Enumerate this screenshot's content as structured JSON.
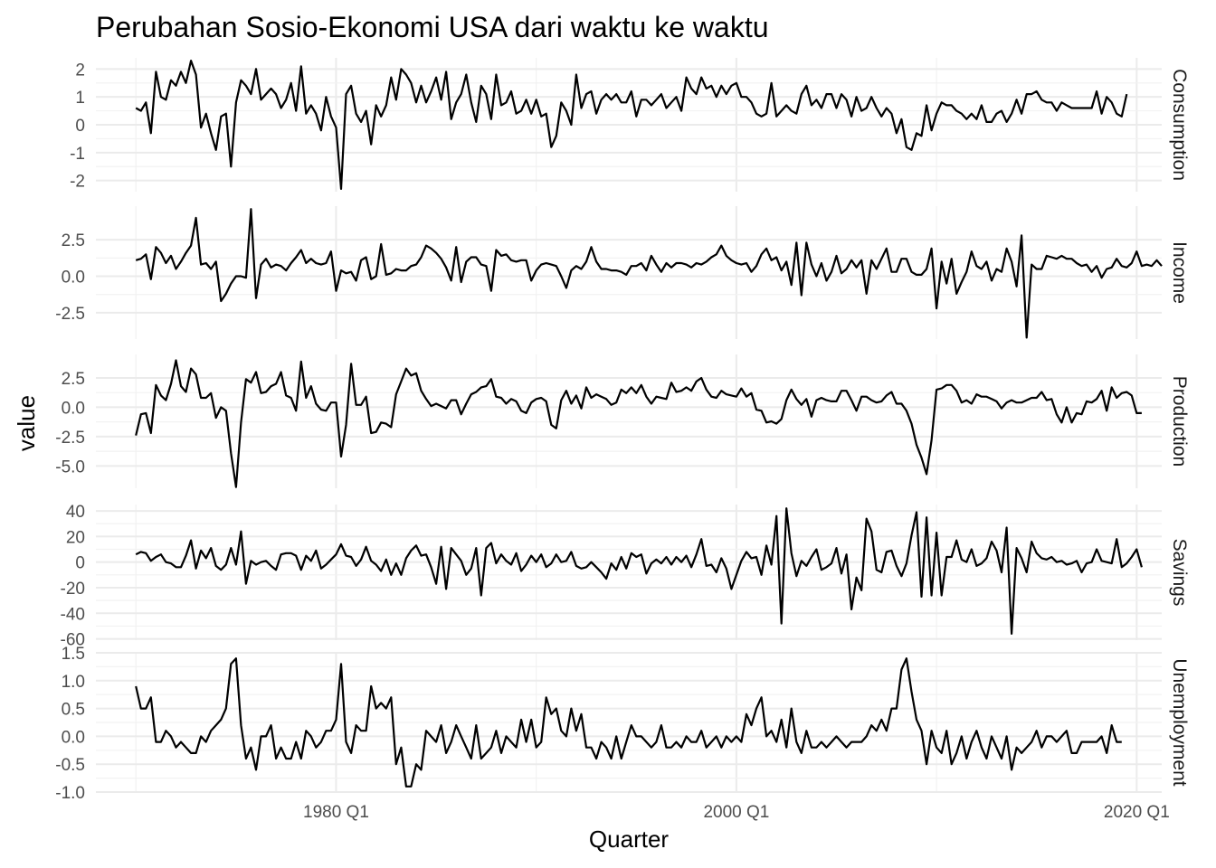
{
  "chart_data": {
    "type": "line",
    "title": "Perubahan Sosio-Ekonomi USA dari waktu ke waktu",
    "xlabel": "Quarter",
    "ylabel": "value",
    "x_start": "1970 Q1",
    "x_end": "2019 Q2",
    "x_ticks": [
      "1980 Q1",
      "2000 Q1",
      "2020 Q1"
    ],
    "x_range": [
      "1968 Q1",
      "2021 Q2"
    ],
    "grid": true,
    "facets": [
      {
        "name": "Consumption",
        "ylim": [
          -2.4,
          2.4
        ],
        "y_ticks": [
          2,
          1,
          0,
          -1,
          -2
        ],
        "y_tick_labels": [
          "2",
          "1",
          "0",
          "-1",
          "-2"
        ],
        "values": [
          0.6,
          0.5,
          0.8,
          -0.3,
          1.9,
          1.0,
          0.9,
          1.6,
          1.4,
          1.9,
          1.5,
          2.3,
          1.8,
          -0.1,
          0.4,
          -0.3,
          -0.9,
          0.3,
          0.4,
          -1.5,
          0.8,
          1.6,
          1.4,
          1.1,
          2.0,
          0.9,
          1.1,
          1.3,
          1.1,
          0.6,
          0.9,
          1.5,
          0.5,
          2.1,
          0.4,
          0.7,
          0.4,
          -0.2,
          1.0,
          0.3,
          -0.1,
          -2.3,
          1.1,
          1.4,
          0.4,
          0.1,
          0.5,
          -0.7,
          0.7,
          0.3,
          0.7,
          1.7,
          0.9,
          2.0,
          1.8,
          1.5,
          0.8,
          1.4,
          0.8,
          1.2,
          1.7,
          0.9,
          1.9,
          0.2,
          0.8,
          1.1,
          1.8,
          0.8,
          0.1,
          1.4,
          1.1,
          0.2,
          1.8,
          0.7,
          0.8,
          1.2,
          0.4,
          0.5,
          0.9,
          0.4,
          0.9,
          0.3,
          0.4,
          -0.8,
          -0.4,
          0.8,
          0.5,
          0.0,
          1.8,
          0.6,
          1.1,
          1.2,
          0.4,
          0.9,
          1.1,
          0.9,
          1.1,
          0.8,
          0.8,
          1.2,
          0.3,
          0.9,
          0.9,
          0.7,
          0.9,
          1.1,
          0.6,
          0.8,
          1.0,
          0.5,
          1.7,
          1.3,
          1.1,
          1.7,
          1.3,
          1.4,
          1.0,
          1.4,
          1.1,
          1.4,
          1.5,
          1.0,
          1.0,
          0.8,
          0.4,
          0.3,
          0.4,
          1.5,
          0.3,
          0.5,
          0.7,
          0.5,
          0.4,
          1.1,
          1.4,
          0.7,
          0.9,
          0.6,
          1.1,
          1.1,
          0.6,
          1.1,
          0.9,
          0.3,
          1.0,
          0.5,
          0.6,
          1.0,
          0.6,
          0.3,
          0.6,
          0.4,
          -0.3,
          0.2,
          -0.8,
          -0.9,
          -0.3,
          -0.4,
          0.7,
          -0.2,
          0.4,
          0.8,
          0.7,
          0.7,
          0.5,
          0.4,
          0.2,
          0.4,
          0.2,
          0.7,
          0.1,
          0.1,
          0.4,
          0.5,
          0.1,
          0.4,
          0.9,
          0.4,
          1.1,
          1.1,
          1.2,
          0.9,
          0.8,
          0.8,
          0.5,
          0.8,
          0.7,
          0.6,
          0.6,
          0.6,
          0.6,
          0.6,
          1.2,
          0.4,
          1.0,
          0.8,
          0.4,
          0.3,
          1.1
        ]
      },
      {
        "name": "Income",
        "ylim": [
          -4.3,
          4.8
        ],
        "y_ticks": [
          2.5,
          0,
          -2.5
        ],
        "y_tick_labels": [
          "2.5",
          "0.0",
          "-2.5"
        ],
        "values": [
          1.1,
          1.2,
          1.5,
          -0.2,
          2.0,
          1.6,
          0.9,
          1.4,
          0.5,
          1.0,
          1.6,
          2.1,
          4.0,
          0.8,
          0.9,
          0.5,
          1.0,
          -1.7,
          -1.2,
          -0.5,
          0.0,
          0.0,
          -0.1,
          4.6,
          -1.5,
          0.8,
          1.2,
          0.6,
          0.8,
          0.7,
          0.4,
          0.9,
          1.3,
          1.8,
          0.9,
          1.2,
          0.9,
          0.8,
          0.9,
          1.7,
          -1.0,
          0.4,
          0.2,
          0.3,
          -0.3,
          1.1,
          1.3,
          -0.2,
          0.0,
          2.2,
          0.1,
          0.2,
          0.5,
          0.4,
          0.4,
          0.7,
          0.8,
          1.3,
          2.1,
          1.9,
          1.6,
          1.2,
          0.6,
          -0.3,
          2.0,
          -0.4,
          1.0,
          1.3,
          1.3,
          0.8,
          0.7,
          -1.0,
          1.8,
          1.4,
          1.5,
          1.1,
          1.0,
          1.1,
          1.1,
          -0.3,
          0.4,
          0.8,
          0.9,
          0.8,
          0.7,
          0.0,
          -0.8,
          0.4,
          0.7,
          0.5,
          1.0,
          2.0,
          1.0,
          0.5,
          0.5,
          0.4,
          0.4,
          0.3,
          0.1,
          0.7,
          0.7,
          0.9,
          0.4,
          1.4,
          0.8,
          0.3,
          0.9,
          0.6,
          0.9,
          0.9,
          0.8,
          0.6,
          0.9,
          0.8,
          1.0,
          1.3,
          1.5,
          2.1,
          1.4,
          1.1,
          0.9,
          0.8,
          0.9,
          0.3,
          0.7,
          1.5,
          1.9,
          1.1,
          1.3,
          0.4,
          1.0,
          -0.6,
          2.3,
          -1.3,
          2.3,
          0.8,
          0.0,
          0.9,
          -0.3,
          0.3,
          1.4,
          0.2,
          0.5,
          1.1,
          0.6,
          1.1,
          -1.2,
          1.1,
          0.5,
          1.2,
          1.9,
          0.3,
          0.3,
          1.2,
          1.2,
          0.3,
          0.1,
          0.1,
          0.5,
          1.9,
          -2.2,
          1.0,
          -0.5,
          1.2,
          -1.2,
          -0.4,
          0.3,
          1.7,
          0.7,
          0.5,
          1.0,
          -0.3,
          0.5,
          0.3,
          1.9,
          1.0,
          -0.7,
          2.8,
          -4.2,
          0.8,
          0.5,
          0.5,
          1.4,
          1.3,
          1.2,
          1.4,
          1.2,
          1.2,
          0.9,
          0.7,
          0.8,
          0.3,
          0.7,
          -0.1,
          0.5,
          0.6,
          1.2,
          0.7,
          0.6,
          0.9,
          1.7,
          0.7,
          0.8,
          0.7,
          1.1,
          0.7
        ]
      },
      {
        "name": "Production",
        "ylim": [
          -6.9,
          4.5
        ],
        "y_ticks": [
          2.5,
          0,
          -2.5,
          -5
        ],
        "y_tick_labels": [
          "2.5",
          "0.0",
          "-2.5",
          "-5.0"
        ],
        "values": [
          -2.4,
          -0.6,
          -0.5,
          -2.2,
          1.9,
          1.0,
          0.6,
          2.0,
          4.0,
          1.8,
          1.3,
          3.3,
          2.8,
          0.8,
          0.8,
          1.2,
          -0.9,
          0.0,
          -0.3,
          -3.9,
          -6.8,
          -1.3,
          2.4,
          2.1,
          3.0,
          1.2,
          1.3,
          1.8,
          2.0,
          3.0,
          1.0,
          0.8,
          -0.3,
          3.9,
          0.8,
          1.8,
          0.3,
          -0.2,
          -0.3,
          0.4,
          0.4,
          -4.2,
          -1.5,
          3.7,
          0.2,
          0.2,
          0.9,
          -2.2,
          -2.1,
          -1.3,
          -1.4,
          -1.7,
          1.1,
          2.2,
          3.3,
          2.7,
          2.9,
          1.4,
          0.7,
          0.1,
          0.3,
          0.1,
          -0.1,
          0.6,
          0.6,
          -0.6,
          0.3,
          1.1,
          1.3,
          1.7,
          1.8,
          2.4,
          0.9,
          0.8,
          0.3,
          0.7,
          0.5,
          -0.3,
          -0.5,
          0.4,
          0.7,
          0.8,
          0.5,
          -1.5,
          -1.8,
          0.6,
          1.4,
          0.3,
          1.0,
          -0.1,
          1.7,
          0.8,
          1.1,
          0.9,
          0.7,
          0.2,
          0.4,
          1.5,
          1.2,
          1.7,
          1.2,
          1.9,
          0.9,
          0.3,
          0.9,
          0.8,
          0.7,
          2.1,
          1.3,
          1.4,
          1.7,
          1.4,
          2.2,
          2.5,
          1.5,
          0.9,
          0.8,
          1.4,
          1.1,
          1.0,
          0.9,
          1.6,
          0.9,
          1.2,
          -0.2,
          -0.3,
          -1.3,
          -1.2,
          -1.4,
          -1.0,
          0.6,
          1.5,
          0.7,
          0.2,
          0.7,
          -0.8,
          0.6,
          0.8,
          0.6,
          0.5,
          0.5,
          1.4,
          1.4,
          0.6,
          -0.3,
          0.9,
          0.9,
          0.6,
          0.4,
          0.5,
          1.0,
          1.3,
          0.3,
          0.3,
          -0.3,
          -1.4,
          -3.2,
          -4.3,
          -5.7,
          -2.8,
          1.5,
          1.6,
          1.9,
          1.9,
          1.4,
          0.4,
          0.6,
          0.3,
          1.1,
          0.9,
          0.9,
          0.7,
          0.5,
          -0.1,
          0.4,
          0.6,
          0.4,
          0.4,
          0.6,
          0.8,
          0.8,
          1.3,
          0.6,
          0.7,
          -0.6,
          -1.3,
          0.0,
          -1.3,
          -0.5,
          -0.6,
          0.5,
          0.4,
          0.7,
          1.4,
          -0.3,
          1.7,
          0.8,
          1.2,
          1.3,
          1.0,
          -0.5,
          -0.5
        ]
      },
      {
        "name": "Savings",
        "ylim": [
          -61,
          45
        ],
        "y_ticks": [
          40,
          20,
          0,
          -20,
          -40,
          -60
        ],
        "y_tick_labels": [
          "40",
          "20",
          "0",
          "-20",
          "-40",
          "-60"
        ],
        "values": [
          6,
          8,
          7,
          1,
          4,
          6,
          0,
          -1,
          -4,
          -4,
          5,
          17,
          -5,
          9,
          3,
          11,
          -3,
          -6,
          -2,
          11,
          -2,
          24,
          -17,
          1,
          -2,
          0,
          1,
          -3,
          -6,
          6,
          7,
          7,
          5,
          -6,
          5,
          1,
          9,
          -5,
          -2,
          2,
          6,
          14,
          5,
          4,
          -3,
          2,
          12,
          1,
          -2,
          -7,
          2,
          -10,
          -1,
          -10,
          3,
          9,
          13,
          5,
          6,
          -4,
          -17,
          12,
          -21,
          11,
          6,
          1,
          -10,
          -5,
          11,
          -26,
          11,
          15,
          -1,
          6,
          1,
          -2,
          7,
          -7,
          -2,
          5,
          0,
          6,
          -4,
          -1,
          6,
          0,
          1,
          8,
          -3,
          -5,
          -4,
          0,
          -4,
          -8,
          -13,
          -1,
          -6,
          4,
          -5,
          7,
          4,
          6,
          -9,
          -1,
          2,
          -1,
          4,
          -2,
          4,
          0,
          5,
          -4,
          6,
          18,
          -3,
          -2,
          -8,
          3,
          -5,
          -21,
          -10,
          1,
          8,
          3,
          4,
          -10,
          13,
          -2,
          36,
          -48,
          42,
          7,
          -11,
          1,
          -3,
          4,
          10,
          -6,
          -4,
          -1,
          11,
          -9,
          6,
          -37,
          -12,
          -22,
          34,
          24,
          -6,
          -8,
          8,
          9,
          -3,
          -11,
          -1,
          21,
          39,
          -27,
          35,
          -26,
          23,
          -26,
          4,
          4,
          17,
          2,
          0,
          10,
          -3,
          -1,
          3,
          16,
          9,
          -8,
          27,
          -56,
          11,
          3,
          -8,
          16,
          7,
          3,
          2,
          4,
          0,
          1,
          -2,
          -1,
          1,
          -8,
          -1,
          0,
          10,
          1,
          0,
          -1,
          18,
          -4,
          -1,
          4,
          10,
          -4
        ]
      },
      {
        "name": "Unemployment",
        "ylim": [
          -1.0,
          1.5
        ],
        "y_ticks": [
          1.5,
          1.0,
          0.5,
          0,
          -0.5,
          -1.0
        ],
        "y_tick_labels": [
          "1.5",
          "1.0",
          "0.5",
          "0.0",
          "-0.5",
          "-1.0"
        ],
        "values": [
          0.9,
          0.5,
          0.5,
          0.7,
          -0.1,
          -0.1,
          0.1,
          0.0,
          -0.2,
          -0.1,
          -0.2,
          -0.3,
          -0.3,
          0.0,
          -0.1,
          0.1,
          0.2,
          0.3,
          0.5,
          1.3,
          1.4,
          0.2,
          -0.4,
          -0.2,
          -0.6,
          0.0,
          0.0,
          0.2,
          -0.4,
          -0.2,
          -0.4,
          -0.4,
          -0.1,
          -0.4,
          0.1,
          0.0,
          -0.2,
          -0.1,
          0.1,
          0.1,
          0.3,
          1.3,
          -0.1,
          -0.3,
          0.2,
          0.1,
          0.1,
          0.9,
          0.5,
          0.6,
          0.5,
          0.7,
          -0.5,
          -0.2,
          -0.9,
          -0.9,
          -0.5,
          -0.6,
          0.1,
          0.0,
          -0.1,
          0.2,
          -0.3,
          -0.1,
          0.2,
          0.0,
          -0.2,
          -0.4,
          0.2,
          -0.4,
          -0.3,
          -0.2,
          0.1,
          -0.3,
          0.0,
          -0.1,
          -0.2,
          0.3,
          -0.1,
          0.3,
          -0.2,
          -0.1,
          0.7,
          0.4,
          0.5,
          0.1,
          0.0,
          0.5,
          0.1,
          0.4,
          -0.2,
          -0.2,
          -0.4,
          -0.1,
          -0.2,
          -0.4,
          0.0,
          -0.4,
          -0.1,
          0.2,
          0.0,
          0.0,
          -0.1,
          -0.2,
          -0.1,
          0.2,
          -0.2,
          -0.2,
          -0.1,
          -0.2,
          0.0,
          -0.1,
          -0.1,
          0.1,
          -0.2,
          -0.1,
          0.0,
          -0.2,
          0.0,
          -0.1,
          0.0,
          -0.1,
          0.4,
          0.2,
          0.5,
          0.7,
          0.0,
          0.1,
          -0.1,
          0.3,
          -0.2,
          0.5,
          -0.1,
          -0.3,
          0.1,
          -0.2,
          -0.2,
          -0.1,
          -0.2,
          -0.1,
          0.0,
          -0.1,
          -0.2,
          -0.1,
          -0.1,
          -0.1,
          0.0,
          0.2,
          0.1,
          0.3,
          0.1,
          0.5,
          0.5,
          1.2,
          1.4,
          0.8,
          0.3,
          0.1,
          -0.5,
          0.1,
          -0.2,
          -0.3,
          0.1,
          -0.5,
          -0.3,
          0.0,
          -0.4,
          -0.1,
          0.1,
          -0.2,
          -0.4,
          0.0,
          -0.2,
          -0.4,
          0.0,
          -0.6,
          -0.2,
          -0.3,
          -0.2,
          -0.1,
          0.1,
          -0.2,
          0.0,
          0.0,
          -0.1,
          0.0,
          0.1,
          -0.3,
          -0.3,
          -0.1,
          -0.1,
          -0.1,
          -0.1,
          0.0,
          -0.3,
          0.2,
          -0.1,
          -0.1
        ]
      }
    ]
  }
}
